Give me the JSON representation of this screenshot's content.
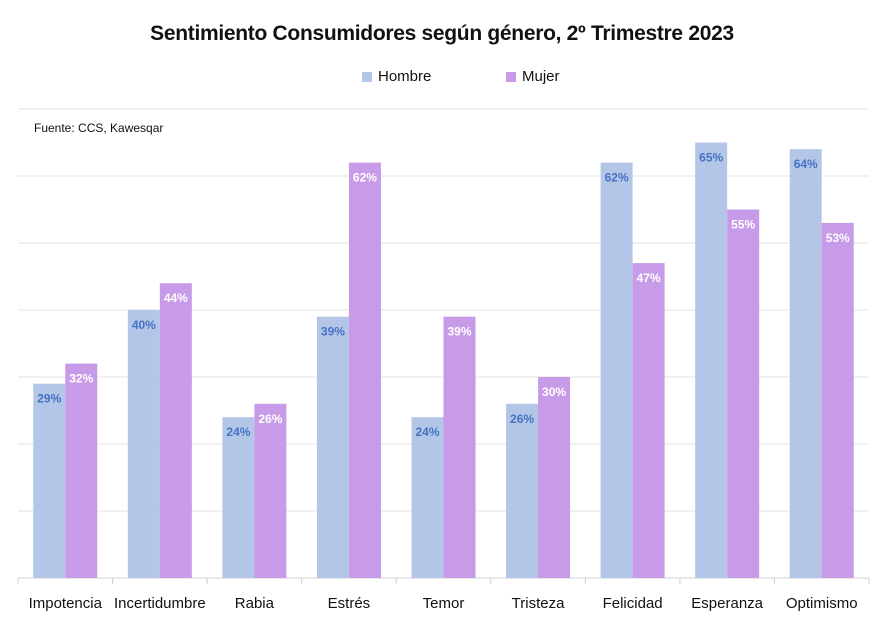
{
  "chart_data": {
    "type": "bar",
    "title": "Sentimiento Consumidores según género, 2º Trimestre 2023",
    "source": "Fuente: CCS, Kawesqar",
    "categories": [
      "Impotencia",
      "Incertidumbre",
      "Rabia",
      "Estrés",
      "Temor",
      "Tristeza",
      "Felicidad",
      "Esperanza",
      "Optimismo"
    ],
    "series": [
      {
        "name": "Hombre",
        "color": "#b4c6e7",
        "label_color": "#4472c4",
        "values": [
          29,
          40,
          24,
          39,
          24,
          26,
          62,
          65,
          64
        ]
      },
      {
        "name": "Mujer",
        "color": "#c89be8",
        "label_color": "#ffffff",
        "values": [
          32,
          44,
          26,
          62,
          39,
          30,
          47,
          55,
          53
        ]
      }
    ],
    "value_suffix": "%",
    "ylim": [
      0,
      70
    ],
    "grid": true,
    "legend_position": "top-center"
  }
}
